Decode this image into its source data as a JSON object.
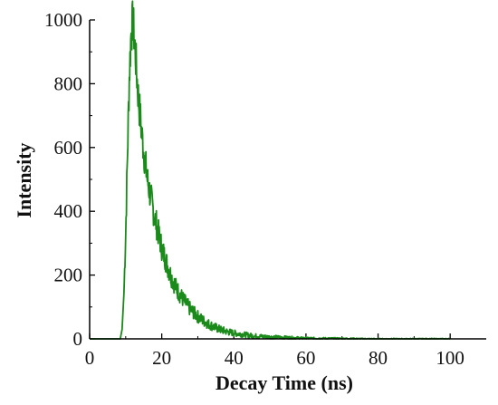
{
  "chart_data": {
    "type": "line",
    "title": "",
    "xlabel": "Decay Time (ns)",
    "ylabel": "Intensity",
    "xlim": [
      0,
      110
    ],
    "ylim": [
      0,
      1000
    ],
    "x_ticks": [
      0,
      20,
      40,
      60,
      80,
      100
    ],
    "y_ticks": [
      0,
      200,
      400,
      600,
      800,
      1000
    ],
    "grid": false,
    "legend": "none",
    "series": [
      {
        "color": "#1a8a1a",
        "x": [
          0,
          8.5,
          9.0,
          9.5,
          10.0,
          10.5,
          11.0,
          11.5,
          12.0,
          12.5,
          13.0,
          13.5,
          14.0,
          14.5,
          15.0,
          15.5,
          16.0,
          17.0,
          18.0,
          19.0,
          20.0,
          21.0,
          22.0,
          23.0,
          24.0,
          25.0,
          26.0,
          27.0,
          28.0,
          30.0,
          32.0,
          34.0,
          36.0,
          38.0,
          40.0,
          45.0,
          50.0,
          55.0,
          60.0,
          70.0,
          80.0,
          90.0,
          100.0
        ],
        "y": [
          0,
          0,
          30,
          140,
          330,
          580,
          820,
          960,
          995,
          930,
          840,
          760,
          700,
          640,
          590,
          545,
          500,
          440,
          385,
          335,
          285,
          250,
          215,
          185,
          160,
          140,
          122,
          106,
          92,
          70,
          53,
          40,
          30,
          23,
          18,
          10,
          6,
          4,
          2,
          1,
          0,
          0,
          0
        ]
      }
    ]
  }
}
